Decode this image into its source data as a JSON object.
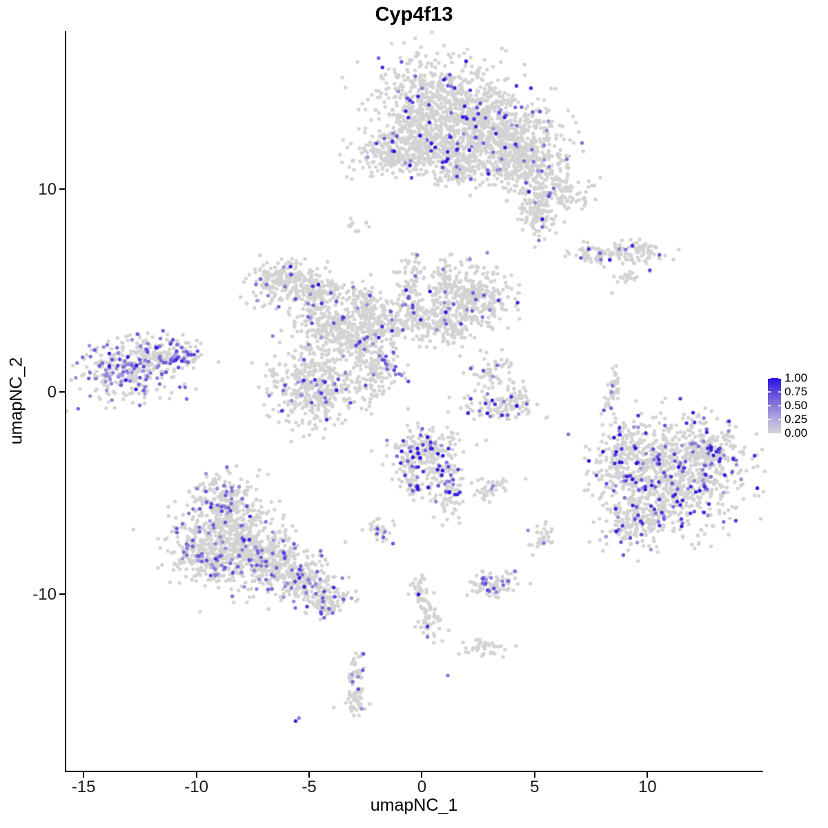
{
  "title": "Cyp4f13",
  "axes": {
    "x": {
      "label": "umapNC_1",
      "ticks": [
        "-15",
        "-10",
        "-5",
        "0",
        "5",
        "10"
      ],
      "tick_values": [
        -15,
        -10,
        -5,
        0,
        5,
        10
      ]
    },
    "y": {
      "label": "umapNC_2",
      "ticks": [
        "10",
        "0",
        "-10"
      ],
      "tick_values": [
        10,
        0,
        -10
      ]
    }
  },
  "legend": {
    "labels": [
      "1.00",
      "0.75",
      "0.50",
      "0.25",
      "0.00"
    ],
    "values": [
      1,
      0.75,
      0.5,
      0.25,
      0
    ]
  },
  "colors": {
    "background": "#ffffff",
    "axis": "#000000",
    "text": "#1a1a1a",
    "point_low": "#d3d3d3",
    "point_high": "#2612e3",
    "gradient_stops": [
      [
        0,
        "#d3d3d3"
      ],
      [
        0.25,
        "#b5abe3"
      ],
      [
        0.5,
        "#8d7ad8"
      ],
      [
        0.75,
        "#5b47dd"
      ],
      [
        1,
        "#2612e3"
      ]
    ]
  },
  "chart_data": {
    "type": "scatter",
    "title": "Cyp4f13",
    "xlabel": "umapNC_1",
    "ylabel": "umapNC_2",
    "xlim": [
      -15.8,
      15.1
    ],
    "ylim": [
      -18.7,
      17.8
    ],
    "x_ticks": [
      -15,
      -10,
      -5,
      0,
      5,
      10
    ],
    "y_ticks": [
      10,
      0,
      -10
    ],
    "grid": false,
    "legend_position": "right",
    "color_scale": {
      "low_value": 0.0,
      "high_value": 1.0,
      "breaks": [
        0,
        0.25,
        0.5,
        0.75,
        1
      ]
    },
    "point_radius_px": 2.7,
    "seed": 42,
    "clusters": [
      {
        "name": "top-center",
        "frac": 0.05,
        "hi": 0.3,
        "blobs": [
          [
            0.6,
            14.3,
            1.5,
            1.2,
            650
          ],
          [
            2.7,
            13.1,
            1.2,
            1.0,
            420
          ],
          [
            4.6,
            12.4,
            0.9,
            1.0,
            280
          ],
          [
            1.2,
            11.7,
            1.0,
            0.55,
            200
          ],
          [
            -0.4,
            12.4,
            0.7,
            0.8,
            160
          ],
          [
            5.0,
            10.9,
            0.6,
            0.7,
            120
          ],
          [
            5.9,
            9.7,
            0.85,
            0.5,
            130
          ],
          [
            5.1,
            8.7,
            0.5,
            0.5,
            90
          ],
          [
            3.6,
            11.4,
            0.7,
            0.5,
            110
          ],
          [
            1.6,
            10.7,
            0.5,
            0.3,
            60
          ]
        ]
      },
      {
        "name": "top-left-small",
        "frac": 0.05,
        "hi": 0.2,
        "blobs": [
          [
            -1.7,
            11.7,
            0.75,
            0.45,
            140
          ]
        ]
      },
      {
        "name": "upper-right-small",
        "frac": 0.07,
        "hi": 0.3,
        "blobs": [
          [
            7.7,
            6.8,
            0.55,
            0.22,
            70
          ],
          [
            9.5,
            6.9,
            0.65,
            0.3,
            85
          ],
          [
            9.2,
            5.8,
            0.3,
            0.25,
            22
          ]
        ]
      },
      {
        "name": "central-web",
        "frac": 0.055,
        "hi": 0.12,
        "blobs": [
          [
            -6.2,
            5.4,
            0.8,
            0.55,
            200
          ],
          [
            -4.4,
            5.0,
            0.6,
            0.4,
            110
          ],
          [
            -4.3,
            3.4,
            0.75,
            0.6,
            170
          ],
          [
            -4.7,
            0.3,
            1.0,
            1.05,
            420
          ],
          [
            -2.9,
            2.6,
            0.8,
            0.7,
            200
          ],
          [
            -1.6,
            3.3,
            0.6,
            0.5,
            130
          ],
          [
            0.2,
            3.7,
            0.7,
            0.55,
            150
          ],
          [
            2.2,
            4.7,
            0.85,
            0.8,
            320
          ],
          [
            1.4,
            3.2,
            0.5,
            0.4,
            80
          ],
          [
            -2.0,
            0.9,
            0.45,
            0.6,
            90
          ],
          [
            -0.5,
            5.2,
            0.3,
            0.8,
            70
          ],
          [
            1.0,
            5.4,
            0.3,
            0.6,
            60
          ],
          [
            -2.6,
            4.4,
            0.4,
            0.5,
            80
          ]
        ]
      },
      {
        "name": "far-left",
        "frac": 0.3,
        "hi": 0.07,
        "blobs": [
          [
            -13.2,
            1.0,
            0.95,
            0.75,
            300
          ],
          [
            -11.6,
            1.9,
            0.65,
            0.5,
            100
          ],
          [
            -10.6,
            1.6,
            0.4,
            0.3,
            40
          ]
        ]
      },
      {
        "name": "center-lower",
        "frac": 0.14,
        "hi": 0.5,
        "blobs": [
          [
            0.2,
            -3.1,
            0.75,
            0.75,
            240
          ],
          [
            1.1,
            -5.0,
            0.4,
            0.7,
            80
          ],
          [
            -0.5,
            -4.6,
            0.3,
            0.4,
            40
          ]
        ]
      },
      {
        "name": "crescent",
        "frac": 0.12,
        "hi": 0.45,
        "blobs": [
          [
            3.0,
            1.0,
            0.4,
            0.5,
            55
          ],
          [
            3.3,
            -0.7,
            0.85,
            0.3,
            100
          ],
          [
            4.3,
            -0.2,
            0.3,
            0.4,
            35
          ]
        ]
      },
      {
        "name": "right-large",
        "frac": 0.13,
        "hi": 0.45,
        "blobs": [
          [
            11.3,
            -4.2,
            1.5,
            1.4,
            850
          ],
          [
            9.0,
            -3.3,
            0.8,
            0.9,
            200
          ],
          [
            9.4,
            -6.3,
            0.8,
            0.55,
            160
          ],
          [
            12.9,
            -3.0,
            0.5,
            0.6,
            90
          ]
        ]
      },
      {
        "name": "right-strand",
        "frac": 0.04,
        "hi": 0,
        "blobs": [
          [
            8.5,
            0.45,
            0.15,
            0.5,
            25
          ],
          [
            8.3,
            -0.6,
            0.15,
            0.4,
            15
          ]
        ]
      },
      {
        "name": "bottom-left",
        "frac": 0.11,
        "hi": 0.05,
        "blobs": [
          [
            -8.7,
            -5.4,
            0.8,
            0.65,
            220
          ],
          [
            -8.5,
            -7.5,
            1.25,
            1.1,
            520
          ],
          [
            -6.7,
            -8.3,
            0.95,
            0.75,
            280
          ],
          [
            -5.3,
            -9.4,
            0.7,
            0.45,
            170
          ],
          [
            -4.2,
            -10.4,
            0.5,
            0.35,
            100
          ],
          [
            -9.8,
            -8.0,
            0.5,
            0.6,
            110
          ]
        ]
      },
      {
        "name": "bit-a",
        "frac": 0.1,
        "hi": 0,
        "blobs": [
          [
            -1.8,
            -6.8,
            0.3,
            0.35,
            32
          ]
        ]
      },
      {
        "name": "bit-b",
        "frac": 0.1,
        "hi": 0,
        "blobs": [
          [
            3.1,
            -4.8,
            0.33,
            0.28,
            40
          ]
        ]
      },
      {
        "name": "bit-c",
        "frac": 0.08,
        "hi": 0,
        "blobs": [
          [
            5.4,
            -7.2,
            0.28,
            0.42,
            30
          ]
        ]
      },
      {
        "name": "bit-strand",
        "frac": 0.02,
        "hi": 0.5,
        "blobs": [
          [
            0.0,
            -9.9,
            0.25,
            0.5,
            40
          ],
          [
            0.3,
            -11.2,
            0.3,
            0.6,
            45
          ]
        ]
      },
      {
        "name": "bit-e",
        "frac": 0.13,
        "hi": 0,
        "blobs": [
          [
            3.1,
            -9.5,
            0.55,
            0.35,
            85
          ]
        ]
      },
      {
        "name": "bit-f",
        "frac": 0.05,
        "hi": 0,
        "blobs": [
          [
            2.6,
            -12.6,
            0.5,
            0.22,
            40
          ]
        ]
      },
      {
        "name": "bit-g",
        "frac": 0.12,
        "hi": 0,
        "blobs": [
          [
            -2.9,
            -13.9,
            0.22,
            0.5,
            35
          ],
          [
            -3.0,
            -15.2,
            0.3,
            0.4,
            40
          ]
        ]
      },
      {
        "name": "bit-gray",
        "frac": 0,
        "hi": 0,
        "blobs": [
          [
            -2.8,
            8.3,
            0.25,
            0.2,
            10
          ]
        ]
      }
    ],
    "streaks": [
      [
        -1.9,
        1.75,
        -0.65,
        0.55,
        13,
        0.85
      ]
    ],
    "singles": [
      [
        1.15,
        -14.0,
        0.5
      ],
      [
        -5.6,
        -16.25,
        0.95
      ],
      [
        -5.45,
        -16.1,
        0.5
      ],
      [
        -0.15,
        -10.0,
        1.0
      ],
      [
        0.25,
        -12.1,
        0.5
      ],
      [
        8.45,
        0.3,
        0.55
      ],
      [
        8.43,
        4.87,
        0
      ],
      [
        4.6,
        -4.3,
        0
      ]
    ]
  }
}
